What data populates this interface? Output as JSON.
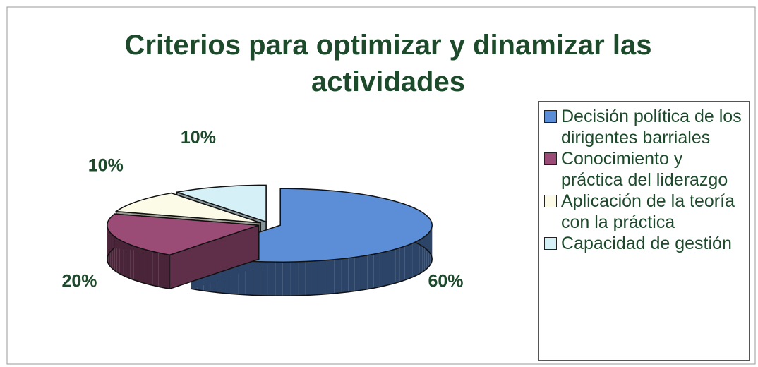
{
  "chart_data": {
    "type": "pie",
    "title": "Criterios para optimizar y dinamizar las actividades",
    "categories": [
      "Decisión política de los dirigentes barriales",
      "Conocimiento y práctica del liderazgo",
      "Aplicación de la teoría con la práctica",
      "Capacidad de gestión"
    ],
    "values": [
      60,
      20,
      10,
      10
    ],
    "value_labels": [
      "60%",
      "20%",
      "10%",
      "10%"
    ],
    "colors": [
      "#5b8ed6",
      "#9a4c76",
      "#fbfbe8",
      "#d6f0f8"
    ],
    "legend": "right"
  }
}
